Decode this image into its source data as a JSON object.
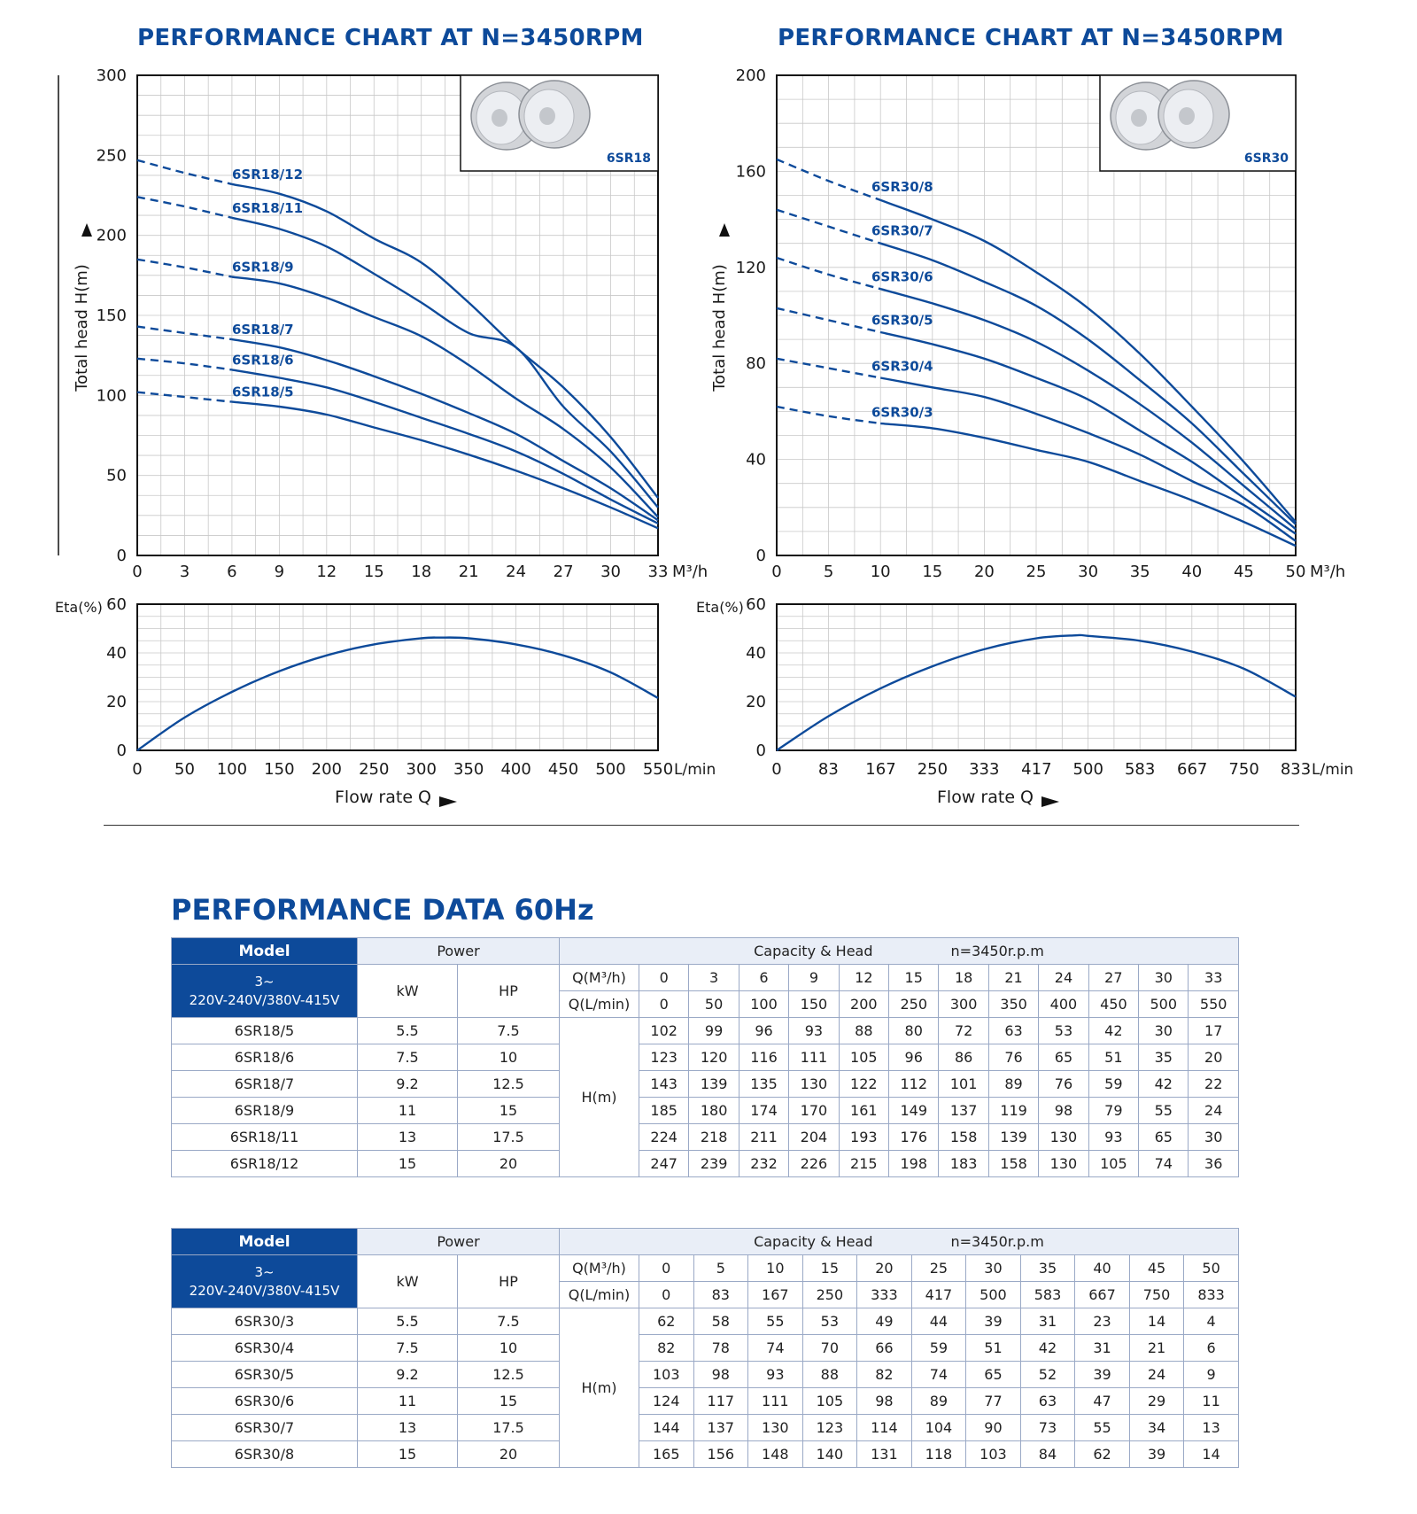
{
  "chart_data": [
    {
      "type": "line",
      "title": "PERFORMANCE CHART AT N=3450RPM",
      "ylabel": "Total head H(m)",
      "xunit": "M³/h",
      "ylim": [
        0,
        300
      ],
      "yticks": [
        "0",
        "50",
        "100",
        "150",
        "200",
        "250",
        "300"
      ],
      "x": [
        0,
        3,
        6,
        9,
        12,
        15,
        18,
        21,
        24,
        27,
        30,
        33
      ],
      "xticks": [
        "0",
        "3",
        "6",
        "9",
        "12",
        "15",
        "18",
        "21",
        "24",
        "27",
        "30",
        "33"
      ],
      "series": [
        {
          "name": "6SR18/12",
          "values": [
            247,
            239,
            232,
            226,
            215,
            198,
            183,
            158,
            130,
            105,
            74,
            36
          ]
        },
        {
          "name": "6SR18/11",
          "values": [
            224,
            218,
            211,
            204,
            193,
            176,
            158,
            139,
            130,
            93,
            65,
            30
          ]
        },
        {
          "name": "6SR18/9",
          "values": [
            185,
            180,
            174,
            170,
            161,
            149,
            137,
            119,
            98,
            79,
            55,
            24
          ]
        },
        {
          "name": "6SR18/7",
          "values": [
            143,
            139,
            135,
            130,
            122,
            112,
            101,
            89,
            76,
            59,
            42,
            22
          ]
        },
        {
          "name": "6SR18/6",
          "values": [
            123,
            120,
            116,
            111,
            105,
            96,
            86,
            76,
            65,
            51,
            35,
            20
          ]
        },
        {
          "name": "6SR18/5",
          "values": [
            102,
            99,
            96,
            93,
            88,
            80,
            72,
            63,
            53,
            42,
            30,
            17
          ]
        }
      ],
      "legend_image_label": "6SR18",
      "grid": true,
      "efficiency": {
        "ylabel": "Eta(%)",
        "ylim": [
          0,
          60
        ],
        "yticks": [
          "0",
          "20",
          "40",
          "60"
        ],
        "xunit": "L/min",
        "xticks": [
          "0",
          "50",
          "100",
          "150",
          "200",
          "250",
          "300",
          "350",
          "400",
          "450",
          "500",
          "550"
        ],
        "x": [
          0,
          50,
          100,
          150,
          200,
          250,
          300,
          320,
          350,
          400,
          450,
          500,
          550
        ],
        "values": [
          0,
          13.5,
          24,
          32.5,
          39,
          43.5,
          46,
          46.3,
          46,
          43.5,
          39,
          32,
          21.5
        ]
      }
    },
    {
      "type": "line",
      "title": "PERFORMANCE CHART AT N=3450RPM",
      "ylabel": "Total head H(m)",
      "xunit": "M³/h",
      "ylim": [
        0,
        200
      ],
      "yticks": [
        "0",
        "40",
        "80",
        "120",
        "160",
        "200"
      ],
      "x": [
        0,
        5,
        10,
        15,
        20,
        25,
        30,
        35,
        40,
        45,
        50
      ],
      "xticks": [
        "0",
        "5",
        "10",
        "15",
        "20",
        "25",
        "30",
        "35",
        "40",
        "45",
        "50"
      ],
      "series": [
        {
          "name": "6SR30/8",
          "values": [
            165,
            156,
            148,
            140,
            131,
            118,
            103,
            84,
            62,
            39,
            14
          ]
        },
        {
          "name": "6SR30/7",
          "values": [
            144,
            137,
            130,
            123,
            114,
            104,
            90,
            73,
            55,
            34,
            13
          ]
        },
        {
          "name": "6SR30/6",
          "values": [
            124,
            117,
            111,
            105,
            98,
            89,
            77,
            63,
            47,
            29,
            11
          ]
        },
        {
          "name": "6SR30/5",
          "values": [
            103,
            98,
            93,
            88,
            82,
            74,
            65,
            52,
            39,
            24,
            9
          ]
        },
        {
          "name": "6SR30/4",
          "values": [
            82,
            78,
            74,
            70,
            66,
            59,
            51,
            42,
            31,
            21,
            6
          ]
        },
        {
          "name": "6SR30/3",
          "values": [
            62,
            58,
            55,
            53,
            49,
            44,
            39,
            31,
            23,
            14,
            4
          ]
        }
      ],
      "legend_image_label": "6SR30",
      "grid": true,
      "efficiency": {
        "ylabel": "Eta(%)",
        "ylim": [
          0,
          60
        ],
        "yticks": [
          "0",
          "20",
          "40",
          "60"
        ],
        "xunit": "L/min",
        "xticks": [
          "0",
          "83",
          "167",
          "250",
          "333",
          "417",
          "500",
          "583",
          "667",
          "750",
          "833"
        ],
        "x": [
          0,
          83,
          167,
          250,
          333,
          417,
          480,
          500,
          583,
          667,
          750,
          833
        ],
        "values": [
          0,
          14,
          25.5,
          34.5,
          41.5,
          46,
          47.2,
          47,
          45,
          40.5,
          33.5,
          22
        ]
      }
    }
  ],
  "flow_label": "Flow rate Q",
  "table_title": "PERFORMANCE DATA 60Hz",
  "colors": {
    "brand_blue": "#0d4a9a",
    "curve_blue": "#0d4a9a",
    "grid": "#c8c8c8"
  },
  "tables": [
    {
      "model_label": "Model",
      "power_label": "Power",
      "capacity_label": "Capacity & Head",
      "speed_label": "n=3450r.p.m",
      "phase_label": "3~",
      "voltage_label": "220V-240V/380V-415V",
      "kw_label": "kW",
      "hp_label": "HP",
      "q_m3_label": "Q(M³/h)",
      "q_lmin_label": "Q(L/min)",
      "hm_label": "H(m)",
      "q_m3": [
        "0",
        "3",
        "6",
        "9",
        "12",
        "15",
        "18",
        "21",
        "24",
        "27",
        "30",
        "33"
      ],
      "q_lmin": [
        "0",
        "50",
        "100",
        "150",
        "200",
        "250",
        "300",
        "350",
        "400",
        "450",
        "500",
        "550"
      ],
      "rows": [
        {
          "model": "6SR18/5",
          "kw": "5.5",
          "hp": "7.5",
          "h": [
            "102",
            "99",
            "96",
            "93",
            "88",
            "80",
            "72",
            "63",
            "53",
            "42",
            "30",
            "17"
          ]
        },
        {
          "model": "6SR18/6",
          "kw": "7.5",
          "hp": "10",
          "h": [
            "123",
            "120",
            "116",
            "111",
            "105",
            "96",
            "86",
            "76",
            "65",
            "51",
            "35",
            "20"
          ]
        },
        {
          "model": "6SR18/7",
          "kw": "9.2",
          "hp": "12.5",
          "h": [
            "143",
            "139",
            "135",
            "130",
            "122",
            "112",
            "101",
            "89",
            "76",
            "59",
            "42",
            "22"
          ]
        },
        {
          "model": "6SR18/9",
          "kw": "11",
          "hp": "15",
          "h": [
            "185",
            "180",
            "174",
            "170",
            "161",
            "149",
            "137",
            "119",
            "98",
            "79",
            "55",
            "24"
          ]
        },
        {
          "model": "6SR18/11",
          "kw": "13",
          "hp": "17.5",
          "h": [
            "224",
            "218",
            "211",
            "204",
            "193",
            "176",
            "158",
            "139",
            "130",
            "93",
            "65",
            "30"
          ]
        },
        {
          "model": "6SR18/12",
          "kw": "15",
          "hp": "20",
          "h": [
            "247",
            "239",
            "232",
            "226",
            "215",
            "198",
            "183",
            "158",
            "130",
            "105",
            "74",
            "36"
          ]
        }
      ]
    },
    {
      "model_label": "Model",
      "power_label": "Power",
      "capacity_label": "Capacity & Head",
      "speed_label": "n=3450r.p.m",
      "phase_label": "3~",
      "voltage_label": "220V-240V/380V-415V",
      "kw_label": "kW",
      "hp_label": "HP",
      "q_m3_label": "Q(M³/h)",
      "q_lmin_label": "Q(L/min)",
      "hm_label": "H(m)",
      "q_m3": [
        "0",
        "5",
        "10",
        "15",
        "20",
        "25",
        "30",
        "35",
        "40",
        "45",
        "50"
      ],
      "q_lmin": [
        "0",
        "83",
        "167",
        "250",
        "333",
        "417",
        "500",
        "583",
        "667",
        "750",
        "833"
      ],
      "rows": [
        {
          "model": "6SR30/3",
          "kw": "5.5",
          "hp": "7.5",
          "h": [
            "62",
            "58",
            "55",
            "53",
            "49",
            "44",
            "39",
            "31",
            "23",
            "14",
            "4"
          ]
        },
        {
          "model": "6SR30/4",
          "kw": "7.5",
          "hp": "10",
          "h": [
            "82",
            "78",
            "74",
            "70",
            "66",
            "59",
            "51",
            "42",
            "31",
            "21",
            "6"
          ]
        },
        {
          "model": "6SR30/5",
          "kw": "9.2",
          "hp": "12.5",
          "h": [
            "103",
            "98",
            "93",
            "88",
            "82",
            "74",
            "65",
            "52",
            "39",
            "24",
            "9"
          ]
        },
        {
          "model": "6SR30/6",
          "kw": "11",
          "hp": "15",
          "h": [
            "124",
            "117",
            "111",
            "105",
            "98",
            "89",
            "77",
            "63",
            "47",
            "29",
            "11"
          ]
        },
        {
          "model": "6SR30/7",
          "kw": "13",
          "hp": "17.5",
          "h": [
            "144",
            "137",
            "130",
            "123",
            "114",
            "104",
            "90",
            "73",
            "55",
            "34",
            "13"
          ]
        },
        {
          "model": "6SR30/8",
          "kw": "15",
          "hp": "20",
          "h": [
            "165",
            "156",
            "148",
            "140",
            "131",
            "118",
            "103",
            "84",
            "62",
            "39",
            "14"
          ]
        }
      ]
    }
  ]
}
